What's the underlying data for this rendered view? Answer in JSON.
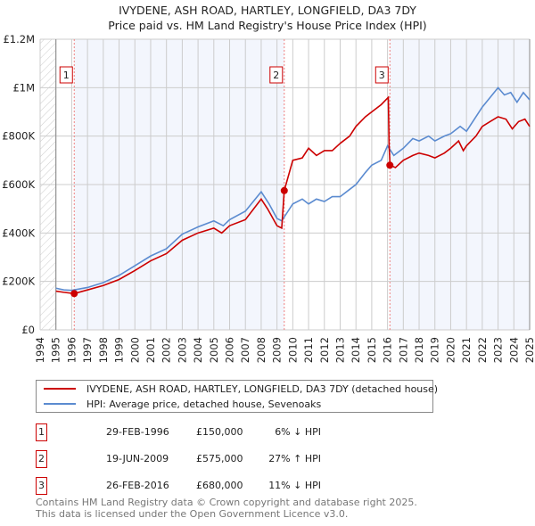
{
  "chart_data": {
    "type": "line",
    "title": "IVYDENE, ASH ROAD, HARTLEY, LONGFIELD, DA3 7DY",
    "subtitle": "Price paid vs. HM Land Registry's House Price Index (HPI)",
    "xlim": [
      1994,
      2025
    ],
    "ylim": [
      0,
      1200000
    ],
    "x_ticks": [
      "1994",
      "1995",
      "1996",
      "1997",
      "1998",
      "1999",
      "2000",
      "2001",
      "2002",
      "2003",
      "2004",
      "2005",
      "2006",
      "2007",
      "2008",
      "2009",
      "2010",
      "2011",
      "2012",
      "2013",
      "2014",
      "2015",
      "2016",
      "2017",
      "2018",
      "2019",
      "2020",
      "2021",
      "2022",
      "2023",
      "2024",
      "2025"
    ],
    "y_ticks": [
      {
        "v": 0,
        "label": "£0"
      },
      {
        "v": 200000,
        "label": "£200K"
      },
      {
        "v": 400000,
        "label": "£400K"
      },
      {
        "v": 600000,
        "label": "£600K"
      },
      {
        "v": 800000,
        "label": "£800K"
      },
      {
        "v": 1000000,
        "label": "£1M"
      },
      {
        "v": 1200000,
        "label": "£1.2M"
      }
    ],
    "grid": true,
    "series": [
      {
        "name": "IVYDENE, ASH ROAD, HARTLEY, LONGFIELD, DA3 7DY (detached house)",
        "color": "#cc0000",
        "points": [
          [
            1995,
            160000
          ],
          [
            1995.5,
            155000
          ],
          [
            1996.16,
            150000
          ],
          [
            1997,
            165000
          ],
          [
            1998,
            183000
          ],
          [
            1999,
            208000
          ],
          [
            2000,
            245000
          ],
          [
            2001,
            285000
          ],
          [
            2002,
            315000
          ],
          [
            2003,
            370000
          ],
          [
            2004,
            400000
          ],
          [
            2005,
            420000
          ],
          [
            2005.5,
            400000
          ],
          [
            2006,
            430000
          ],
          [
            2007,
            455000
          ],
          [
            2008,
            540000
          ],
          [
            2008.4,
            500000
          ],
          [
            2009,
            430000
          ],
          [
            2009.3,
            420000
          ],
          [
            2009.46,
            575000
          ],
          [
            2010,
            700000
          ],
          [
            2010.6,
            710000
          ],
          [
            2011,
            750000
          ],
          [
            2011.5,
            720000
          ],
          [
            2012,
            740000
          ],
          [
            2012.5,
            740000
          ],
          [
            2013,
            770000
          ],
          [
            2013.6,
            800000
          ],
          [
            2014,
            840000
          ],
          [
            2014.6,
            880000
          ],
          [
            2015,
            900000
          ],
          [
            2015.6,
            930000
          ],
          [
            2016.05,
            960000
          ],
          [
            2016.1,
            760000
          ],
          [
            2016.16,
            680000
          ],
          [
            2016.5,
            670000
          ],
          [
            2017,
            700000
          ],
          [
            2017.6,
            720000
          ],
          [
            2018,
            730000
          ],
          [
            2018.6,
            720000
          ],
          [
            2019,
            710000
          ],
          [
            2019.6,
            730000
          ],
          [
            2020,
            750000
          ],
          [
            2020.5,
            780000
          ],
          [
            2020.8,
            740000
          ],
          [
            2021,
            760000
          ],
          [
            2021.6,
            800000
          ],
          [
            2022,
            840000
          ],
          [
            2022.5,
            860000
          ],
          [
            2023,
            880000
          ],
          [
            2023.5,
            870000
          ],
          [
            2023.9,
            830000
          ],
          [
            2024.3,
            860000
          ],
          [
            2024.7,
            870000
          ],
          [
            2025,
            840000
          ]
        ]
      },
      {
        "name": "HPI: Average price, detached house, Sevenoaks",
        "color": "#5b8bd0",
        "points": [
          [
            1995,
            172000
          ],
          [
            1995.5,
            165000
          ],
          [
            1996,
            163000
          ],
          [
            1997,
            175000
          ],
          [
            1998,
            195000
          ],
          [
            1999,
            225000
          ],
          [
            2000,
            265000
          ],
          [
            2001,
            305000
          ],
          [
            2002,
            335000
          ],
          [
            2003,
            395000
          ],
          [
            2004,
            425000
          ],
          [
            2005,
            450000
          ],
          [
            2005.6,
            430000
          ],
          [
            2006,
            455000
          ],
          [
            2007,
            490000
          ],
          [
            2008,
            570000
          ],
          [
            2008.5,
            520000
          ],
          [
            2009,
            460000
          ],
          [
            2009.3,
            450000
          ],
          [
            2010,
            520000
          ],
          [
            2010.6,
            540000
          ],
          [
            2011,
            520000
          ],
          [
            2011.5,
            540000
          ],
          [
            2012,
            530000
          ],
          [
            2012.5,
            550000
          ],
          [
            2013,
            550000
          ],
          [
            2013.6,
            580000
          ],
          [
            2014,
            600000
          ],
          [
            2014.6,
            650000
          ],
          [
            2015,
            680000
          ],
          [
            2015.6,
            700000
          ],
          [
            2016,
            760000
          ],
          [
            2016.4,
            720000
          ],
          [
            2017,
            750000
          ],
          [
            2017.6,
            790000
          ],
          [
            2018,
            780000
          ],
          [
            2018.6,
            800000
          ],
          [
            2019,
            780000
          ],
          [
            2019.6,
            800000
          ],
          [
            2020,
            810000
          ],
          [
            2020.6,
            840000
          ],
          [
            2021,
            820000
          ],
          [
            2021.6,
            880000
          ],
          [
            2022,
            920000
          ],
          [
            2022.5,
            960000
          ],
          [
            2023,
            1000000
          ],
          [
            2023.4,
            970000
          ],
          [
            2023.8,
            980000
          ],
          [
            2024.2,
            940000
          ],
          [
            2024.6,
            980000
          ],
          [
            2025,
            950000
          ]
        ]
      }
    ],
    "sales": [
      {
        "num": "1",
        "x": 1996.16,
        "value": 150000,
        "date": "29-FEB-1996",
        "price": "£150,000",
        "hpi": "6% ↓ HPI"
      },
      {
        "num": "2",
        "x": 2009.46,
        "value": 575000,
        "date": "19-JUN-2009",
        "price": "£575,000",
        "hpi": "27% ↑ HPI"
      },
      {
        "num": "3",
        "x": 2016.15,
        "value": 680000,
        "date": "26-FEB-2016",
        "price": "£680,000",
        "hpi": "11% ↓ HPI"
      }
    ]
  },
  "footer": {
    "line1": "Contains HM Land Registry data © Crown copyright and database right 2025.",
    "line2": "This data is licensed under the Open Government Licence v3.0."
  }
}
